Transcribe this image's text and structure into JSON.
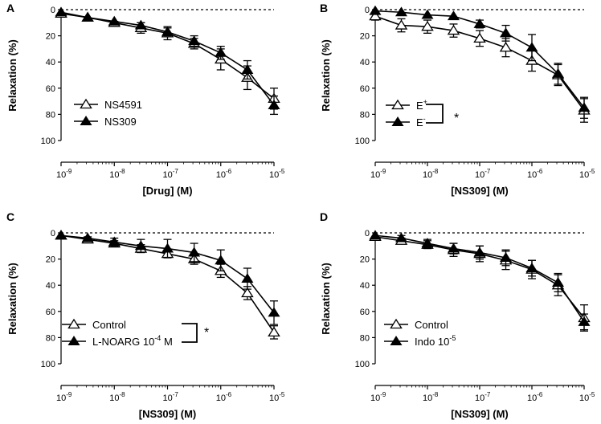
{
  "chart_data": [
    {
      "type": "line",
      "panel": "A",
      "ylabel": "Relaxation (%)",
      "xlabel": "[Drug] (M)",
      "yticks": [
        "0",
        "20",
        "40",
        "60",
        "80",
        "100"
      ],
      "xticks": [
        {
          "base": "10",
          "exp": "-9"
        },
        {
          "base": "10",
          "exp": "-8"
        },
        {
          "base": "10",
          "exp": "-7"
        },
        {
          "base": "10",
          "exp": "-6"
        },
        {
          "base": "10",
          "exp": "-5"
        }
      ],
      "ylim": [
        0,
        100
      ],
      "xlim_log10": [
        -9,
        -5
      ],
      "x_log10": [
        -9,
        -8.5,
        -8,
        -7.5,
        -7,
        -6.5,
        -6,
        -5.5,
        -5
      ],
      "series": [
        {
          "name": "NS4591",
          "marker": "open-triangle",
          "values": [
            3,
            6,
            10,
            14,
            18,
            26,
            38,
            52,
            68
          ],
          "errors": [
            0,
            0,
            1,
            4,
            5,
            4,
            8,
            9,
            8
          ]
        },
        {
          "name": "NS309",
          "marker": "filled-triangle",
          "values": [
            2,
            6,
            9,
            12,
            17,
            24,
            33,
            46,
            73
          ],
          "errors": [
            0,
            0,
            0,
            2,
            3,
            4,
            5,
            7,
            7
          ]
        }
      ],
      "legend": {
        "entries": [
          "NS4591",
          "NS309"
        ],
        "superscripts": [
          "",
          ""
        ],
        "suffixes": [
          "",
          ""
        ],
        "significance": ""
      }
    },
    {
      "type": "line",
      "panel": "B",
      "ylabel": "Relaxation (%)",
      "xlabel": "[NS309] (M)",
      "yticks": [
        "0",
        "20",
        "40",
        "60",
        "80",
        "100"
      ],
      "xticks": [
        {
          "base": "10",
          "exp": "-9"
        },
        {
          "base": "10",
          "exp": "-8"
        },
        {
          "base": "10",
          "exp": "-7"
        },
        {
          "base": "10",
          "exp": "-6"
        },
        {
          "base": "10",
          "exp": "-5"
        }
      ],
      "ylim": [
        0,
        100
      ],
      "xlim_log10": [
        -9,
        -5
      ],
      "x_log10": [
        -9,
        -8.5,
        -8,
        -7.5,
        -7,
        -6.5,
        -6,
        -5.5,
        -5
      ],
      "series": [
        {
          "name": "E",
          "marker": "open-triangle",
          "values": [
            5,
            12,
            13,
            16,
            22,
            29,
            39,
            50,
            77
          ],
          "errors": [
            3,
            5,
            5,
            5,
            6,
            7,
            8,
            8,
            9
          ]
        },
        {
          "name": "E",
          "marker": "filled-triangle",
          "values": [
            1,
            2,
            4,
            5,
            11,
            18,
            29,
            49,
            75
          ],
          "errors": [
            0,
            0,
            0,
            0,
            3,
            6,
            10,
            8,
            8
          ]
        }
      ],
      "legend": {
        "entries": [
          "E",
          "E"
        ],
        "superscripts": [
          "+",
          "-"
        ],
        "suffixes": [
          "",
          ""
        ],
        "significance": "*"
      }
    },
    {
      "type": "line",
      "panel": "C",
      "ylabel": "Relaxation (%)",
      "xlabel": "[NS309] (M)",
      "yticks": [
        "0",
        "20",
        "40",
        "60",
        "80",
        "100"
      ],
      "xticks": [
        {
          "base": "10",
          "exp": "-9"
        },
        {
          "base": "10",
          "exp": "-8"
        },
        {
          "base": "10",
          "exp": "-7"
        },
        {
          "base": "10",
          "exp": "-6"
        },
        {
          "base": "10",
          "exp": "-5"
        }
      ],
      "ylim": [
        0,
        100
      ],
      "xlim_log10": [
        -9,
        -5
      ],
      "x_log10": [
        -9,
        -8.5,
        -8,
        -7.5,
        -7,
        -6.5,
        -6,
        -5.5,
        -5
      ],
      "series": [
        {
          "name": "Control",
          "marker": "open-triangle",
          "values": [
            2,
            5,
            8,
            12,
            16,
            20,
            29,
            46,
            76
          ],
          "errors": [
            0,
            1,
            2,
            3,
            3,
            4,
            5,
            5,
            5
          ]
        },
        {
          "name": "L-NOARG 10-4 M",
          "marker": "filled-triangle",
          "values": [
            2,
            4,
            7,
            10,
            12,
            15,
            21,
            35,
            61
          ],
          "errors": [
            0,
            1,
            3,
            5,
            7,
            7,
            8,
            8,
            9
          ]
        }
      ],
      "legend": {
        "entries": [
          "Control",
          "L-NOARG  10"
        ],
        "superscripts": [
          "",
          "-4"
        ],
        "suffixes": [
          "",
          " M"
        ],
        "significance": "*"
      }
    },
    {
      "type": "line",
      "panel": "D",
      "ylabel": "Relaxation (%)",
      "xlabel": "[NS309] (M)",
      "yticks": [
        "0",
        "20",
        "40",
        "60",
        "80",
        "100"
      ],
      "xticks": [
        {
          "base": "10",
          "exp": "-9"
        },
        {
          "base": "10",
          "exp": "-8"
        },
        {
          "base": "10",
          "exp": "-7"
        },
        {
          "base": "10",
          "exp": "-6"
        },
        {
          "base": "10",
          "exp": "-5"
        }
      ],
      "ylim": [
        0,
        100
      ],
      "xlim_log10": [
        -9,
        -5
      ],
      "x_log10": [
        -9,
        -8.5,
        -8,
        -7.5,
        -7,
        -6.5,
        -6,
        -5.5,
        -5
      ],
      "series": [
        {
          "name": "Control",
          "marker": "open-triangle",
          "values": [
            3,
            6,
            9,
            13,
            16,
            21,
            28,
            40,
            65
          ],
          "errors": [
            0,
            2,
            3,
            5,
            6,
            7,
            7,
            8,
            10
          ]
        },
        {
          "name": "Indo 10-5",
          "marker": "filled-triangle",
          "values": [
            2,
            4,
            8,
            12,
            15,
            19,
            27,
            38,
            68
          ],
          "errors": [
            0,
            2,
            3,
            4,
            5,
            6,
            6,
            7,
            6
          ]
        }
      ],
      "legend": {
        "entries": [
          "Control",
          "Indo 10"
        ],
        "superscripts": [
          "",
          "-5"
        ],
        "suffixes": [
          "",
          ""
        ],
        "significance": ""
      }
    }
  ]
}
